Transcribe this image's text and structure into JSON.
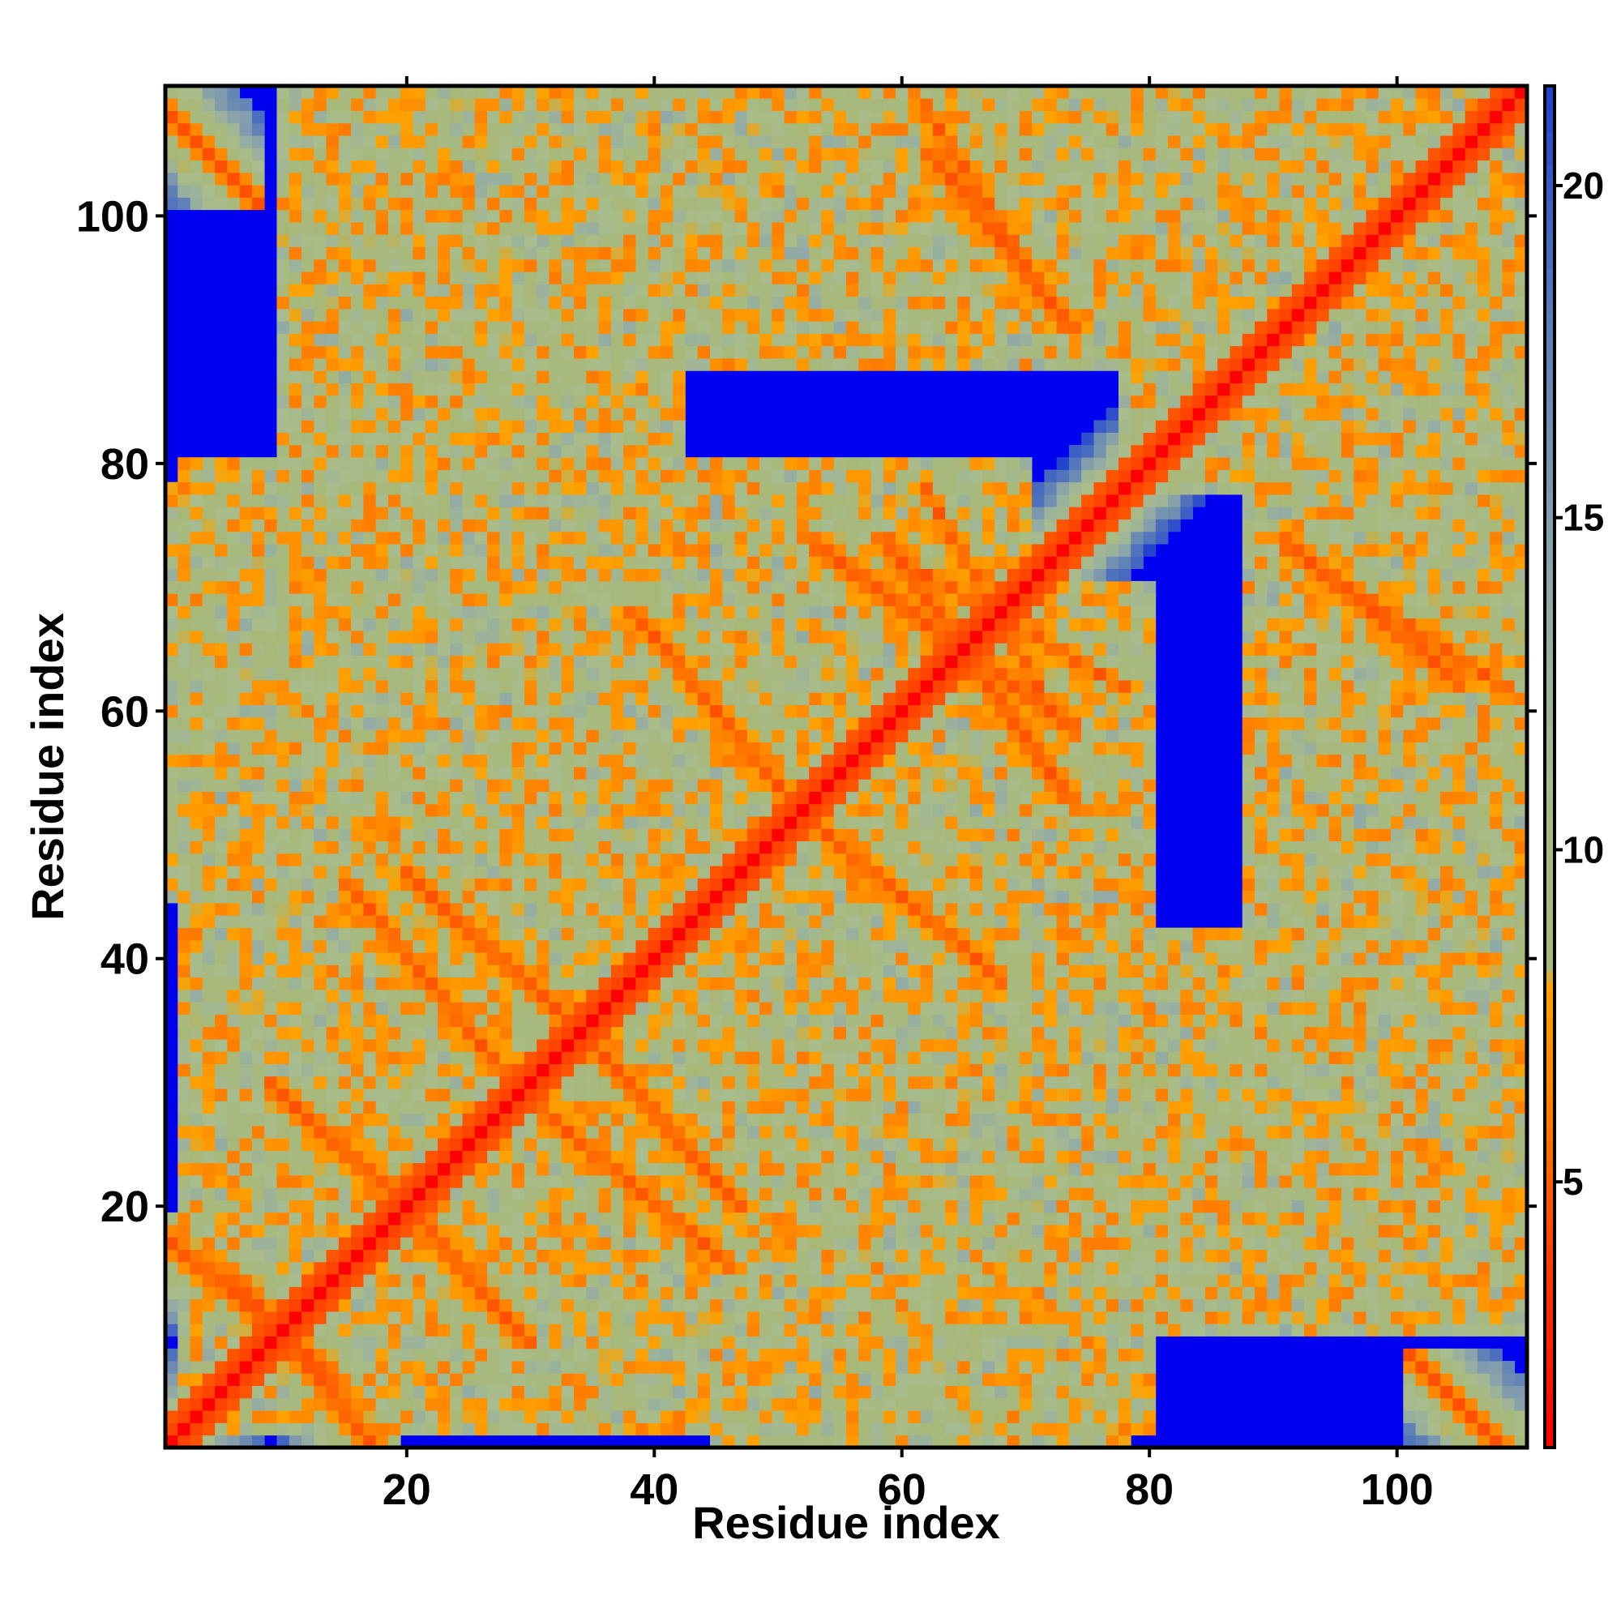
{
  "chart_data": {
    "type": "heatmap",
    "title": "",
    "xlabel": "Residue index",
    "ylabel": "Residue index",
    "n_residues": 110,
    "xlim": [
      0.5,
      110.5
    ],
    "ylim": [
      0.5,
      110.5
    ],
    "x_ticks": [
      20,
      40,
      60,
      80,
      100
    ],
    "y_ticks": [
      20,
      40,
      60,
      80,
      100
    ],
    "x_tick_labels": [
      "20",
      "40",
      "60",
      "80",
      "100"
    ],
    "y_tick_labels": [
      "20",
      "40",
      "60",
      "80",
      "100"
    ],
    "grid": false,
    "legend": "right colorbar",
    "value_units": "distance",
    "colorbar": {
      "min": 1,
      "max": 21.5,
      "ticks": [
        5,
        10,
        15,
        20
      ],
      "tick_labels": [
        "5",
        "10",
        "15",
        "20"
      ],
      "stops": [
        {
          "value": 1.0,
          "color": "#ff0000"
        },
        {
          "value": 4.0,
          "color": "#ff4000"
        },
        {
          "value": 6.0,
          "color": "#ff7a00"
        },
        {
          "value": 8.0,
          "color": "#ffa200"
        },
        {
          "value": 8.2,
          "color": "#a8b878"
        },
        {
          "value": 11.0,
          "color": "#a8bc8c"
        },
        {
          "value": 14.0,
          "color": "#90a8a8"
        },
        {
          "value": 18.0,
          "color": "#5a7cb8"
        },
        {
          "value": 21.5,
          "color": "#2040d0"
        }
      ],
      "far_color": "#0000f0"
    },
    "structure": {
      "strand_pairs": [
        {
          "a": [
            1,
            12
          ],
          "b": [
            8,
            17
          ],
          "orientation": "antiparallel"
        },
        {
          "a": [
            11,
            20
          ],
          "b": [
            20,
            28
          ],
          "orientation": "antiparallel"
        },
        {
          "a": [
            17,
            26
          ],
          "b": [
            33,
            44
          ],
          "orientation": "antiparallel"
        },
        {
          "a": [
            22,
            32
          ],
          "b": [
            36,
            45
          ],
          "orientation": "antiparallel"
        },
        {
          "a": [
            40,
            50
          ],
          "b": [
            54,
            66
          ],
          "orientation": "antiparallel"
        },
        {
          "a": [
            55,
            72
          ],
          "b": [
            60,
            72
          ],
          "orientation": "antiparallel"
        },
        {
          "a": [
            63,
            71
          ],
          "b": [
            62,
            76
          ],
          "orientation": "antiparallel"
        },
        {
          "a": [
            93,
            103
          ],
          "b": [
            64,
            72
          ],
          "orientation": "antiparallel"
        },
        {
          "a": [
            63,
            72
          ],
          "b": [
            93,
            107
          ],
          "orientation": "antiparallel"
        },
        {
          "a": [
            1,
            6
          ],
          "b": [
            103,
            108
          ],
          "orientation": "antiparallel"
        }
      ],
      "regions": [
        {
          "x": [
            2,
            10
          ],
          "y": [
            2,
            30
          ]
        },
        {
          "x": [
            2,
            35
          ],
          "y": [
            2,
            35
          ]
        },
        {
          "x": [
            2,
            30
          ],
          "y": [
            35,
            80
          ]
        },
        {
          "x": [
            10,
            40
          ],
          "y": [
            50,
            110
          ]
        },
        {
          "x": [
            30,
            55
          ],
          "y": [
            20,
            80
          ]
        },
        {
          "x": [
            45,
            78
          ],
          "y": [
            1,
            28
          ]
        },
        {
          "x": [
            52,
            80
          ],
          "y": [
            28,
            70
          ]
        },
        {
          "x": [
            52,
            80
          ],
          "y": [
            88,
            110
          ]
        },
        {
          "x": [
            65,
            100
          ],
          "y": [
            15,
            42
          ]
        },
        {
          "x": [
            88,
            110
          ],
          "y": [
            30,
            80
          ]
        },
        {
          "x": [
            78,
            110
          ],
          "y": [
            78,
            110
          ]
        }
      ]
    }
  }
}
